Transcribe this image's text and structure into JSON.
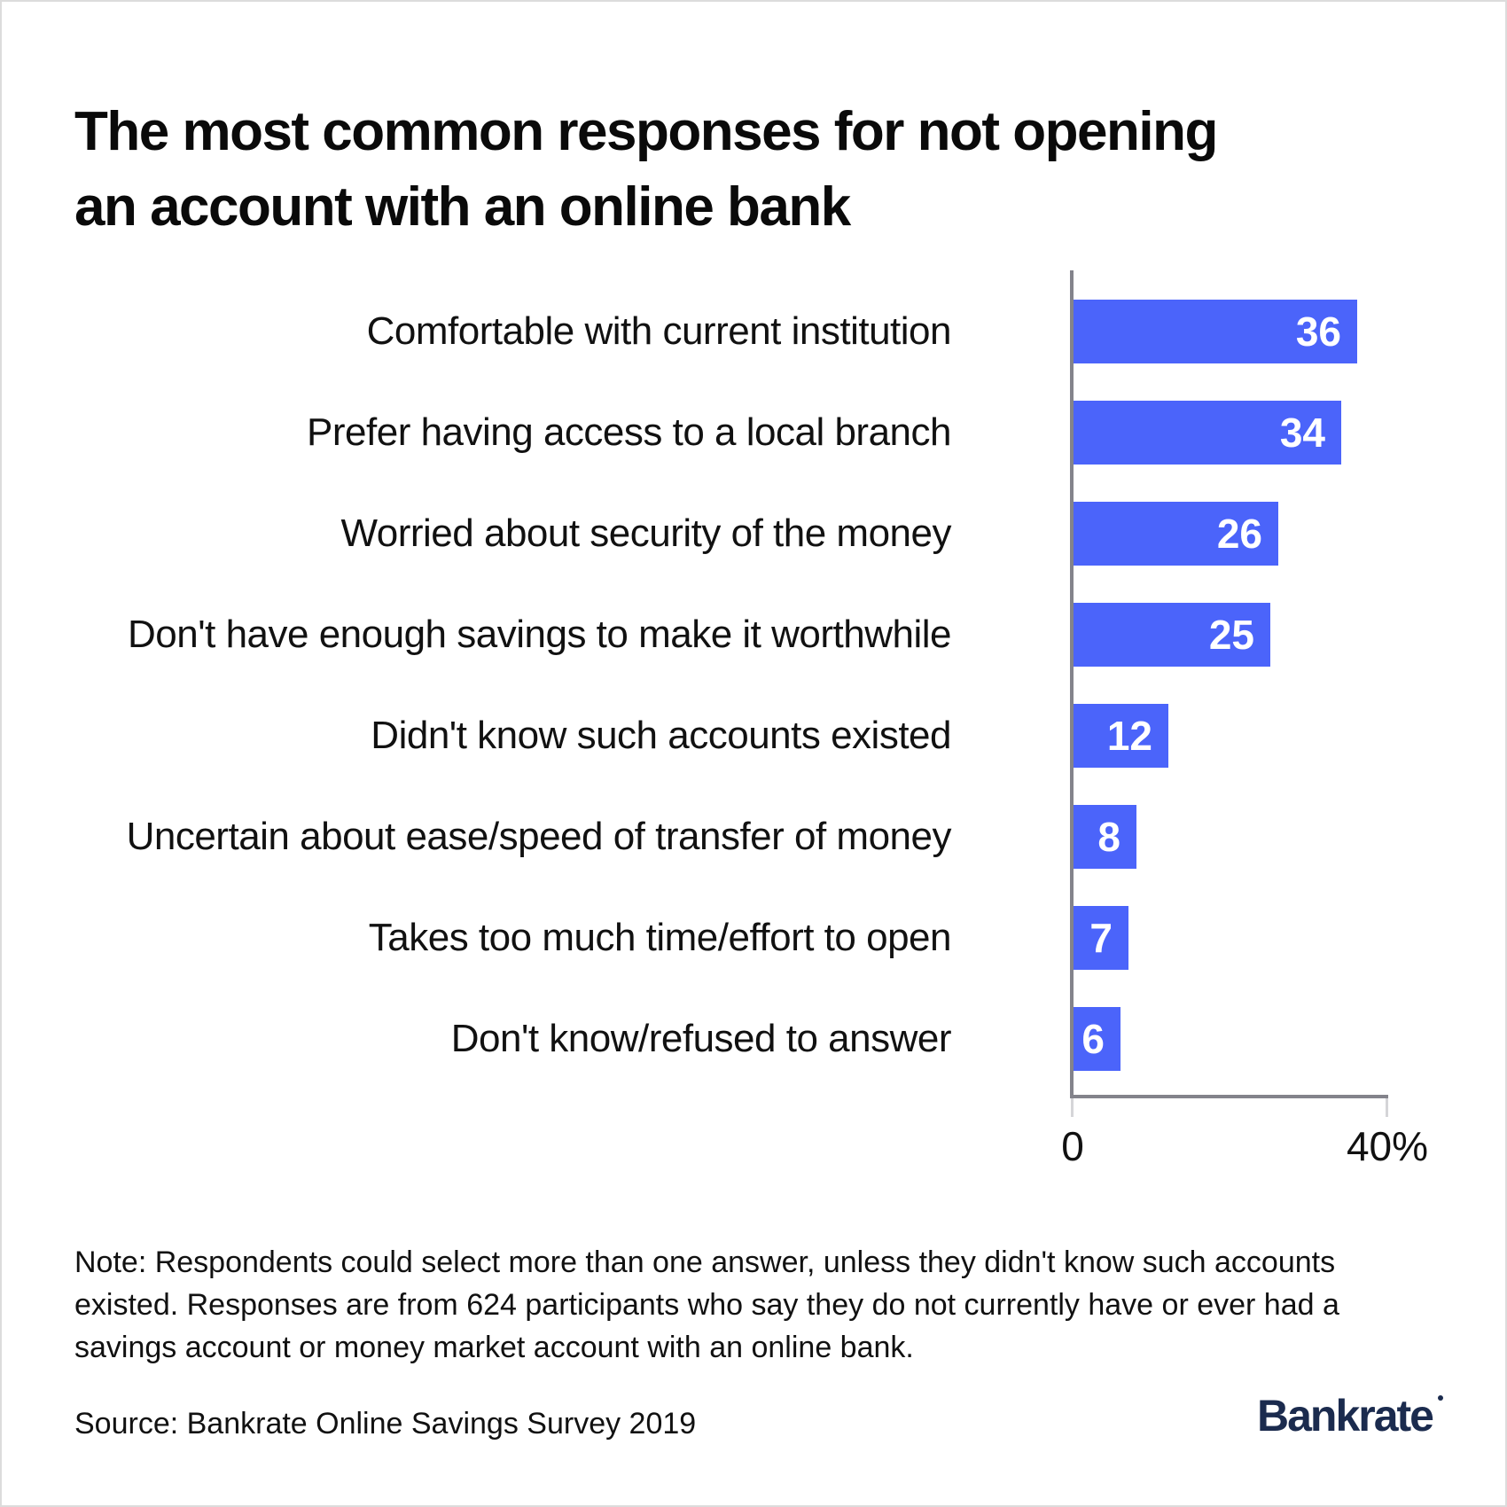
{
  "title_lines": [
    "The most common responses for not opening",
    "an account with an online bank"
  ],
  "chart_data": {
    "type": "bar",
    "orientation": "horizontal",
    "title": "The most common responses for not opening an account with an online bank",
    "categories": [
      "Comfortable with current institution",
      "Prefer having access to a local branch",
      "Worried about security of the money",
      "Don't have enough savings to make it worthwhile",
      "Didn't know such accounts existed",
      "Uncertain about ease/speed of transfer of money",
      "Takes too much time/effort to open",
      "Don't know/refused to answer"
    ],
    "values": [
      36,
      34,
      26,
      25,
      12,
      8,
      7,
      6
    ],
    "unit": "%",
    "xlim": [
      0,
      40
    ],
    "ticks": [
      "0",
      "40%"
    ],
    "grid": false,
    "legend": "none",
    "bar_color": "#4B64FA",
    "value_label_color": "#ffffff",
    "axis_color": "#83838b"
  },
  "note_lines": [
    "Note: Respondents could select more than one answer, unless they didn't know such accounts",
    "existed. Responses are from 624 participants who say they do not currently have or ever had a",
    "savings account or money market account with an online bank."
  ],
  "source": "Source: Bankrate Online Savings Survey 2019",
  "logo_text": "Bankrate"
}
